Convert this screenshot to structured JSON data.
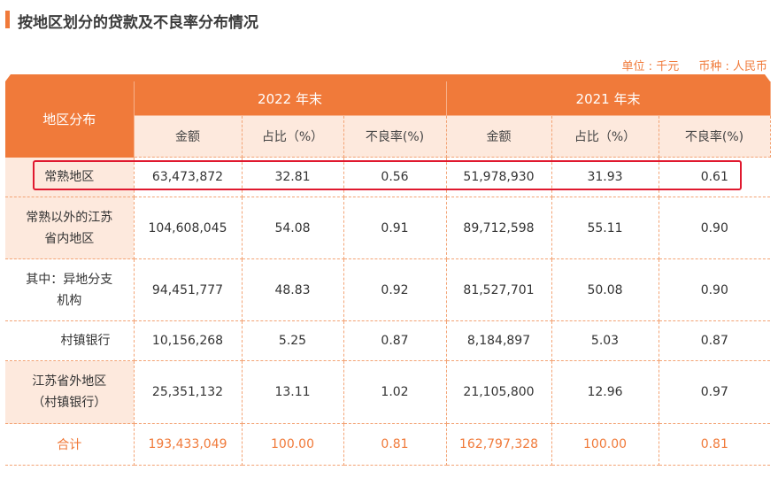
{
  "title": "按地区划分的贷款及不良率分布情况",
  "meta": {
    "unit": "单位 : 千元",
    "currency": "币种 : 人民币"
  },
  "header": {
    "region": "地区分布",
    "year1": "2022 年末",
    "year2": "2021 年末",
    "cols": [
      "金额",
      "占比（%）",
      "不良率(%)",
      "金额",
      "占比（%）",
      "不良率(%)"
    ]
  },
  "rows": [
    {
      "region": "常熟地区",
      "v": [
        "63,473,872",
        "32.81",
        "0.56",
        "51,978,930",
        "31.93",
        "0.61"
      ]
    },
    {
      "region": "常熟以外的江苏\n省内地区",
      "v": [
        "104,608,045",
        "54.08",
        "0.91",
        "89,712,598",
        "55.11",
        "0.90"
      ]
    },
    {
      "region": "其中：异地分支\n机构",
      "v": [
        "94,451,777",
        "48.83",
        "0.92",
        "81,527,701",
        "50.08",
        "0.90"
      ]
    },
    {
      "region": "村镇银行",
      "v": [
        "10,156,268",
        "5.25",
        "0.87",
        "8,184,897",
        "5.03",
        "0.87"
      ]
    },
    {
      "region": "江苏省外地区\n（村镇银行）",
      "v": [
        "25,351,132",
        "13.11",
        "1.02",
        "21,105,800",
        "12.96",
        "0.97"
      ]
    }
  ],
  "total": {
    "region": "合计",
    "v": [
      "193,433,049",
      "100.00",
      "0.81",
      "162,797,328",
      "100.00",
      "0.81"
    ]
  },
  "colors": {
    "accent": "#f07a3a",
    "header_light": "#fde9dd",
    "highlight": "#e0192f"
  }
}
